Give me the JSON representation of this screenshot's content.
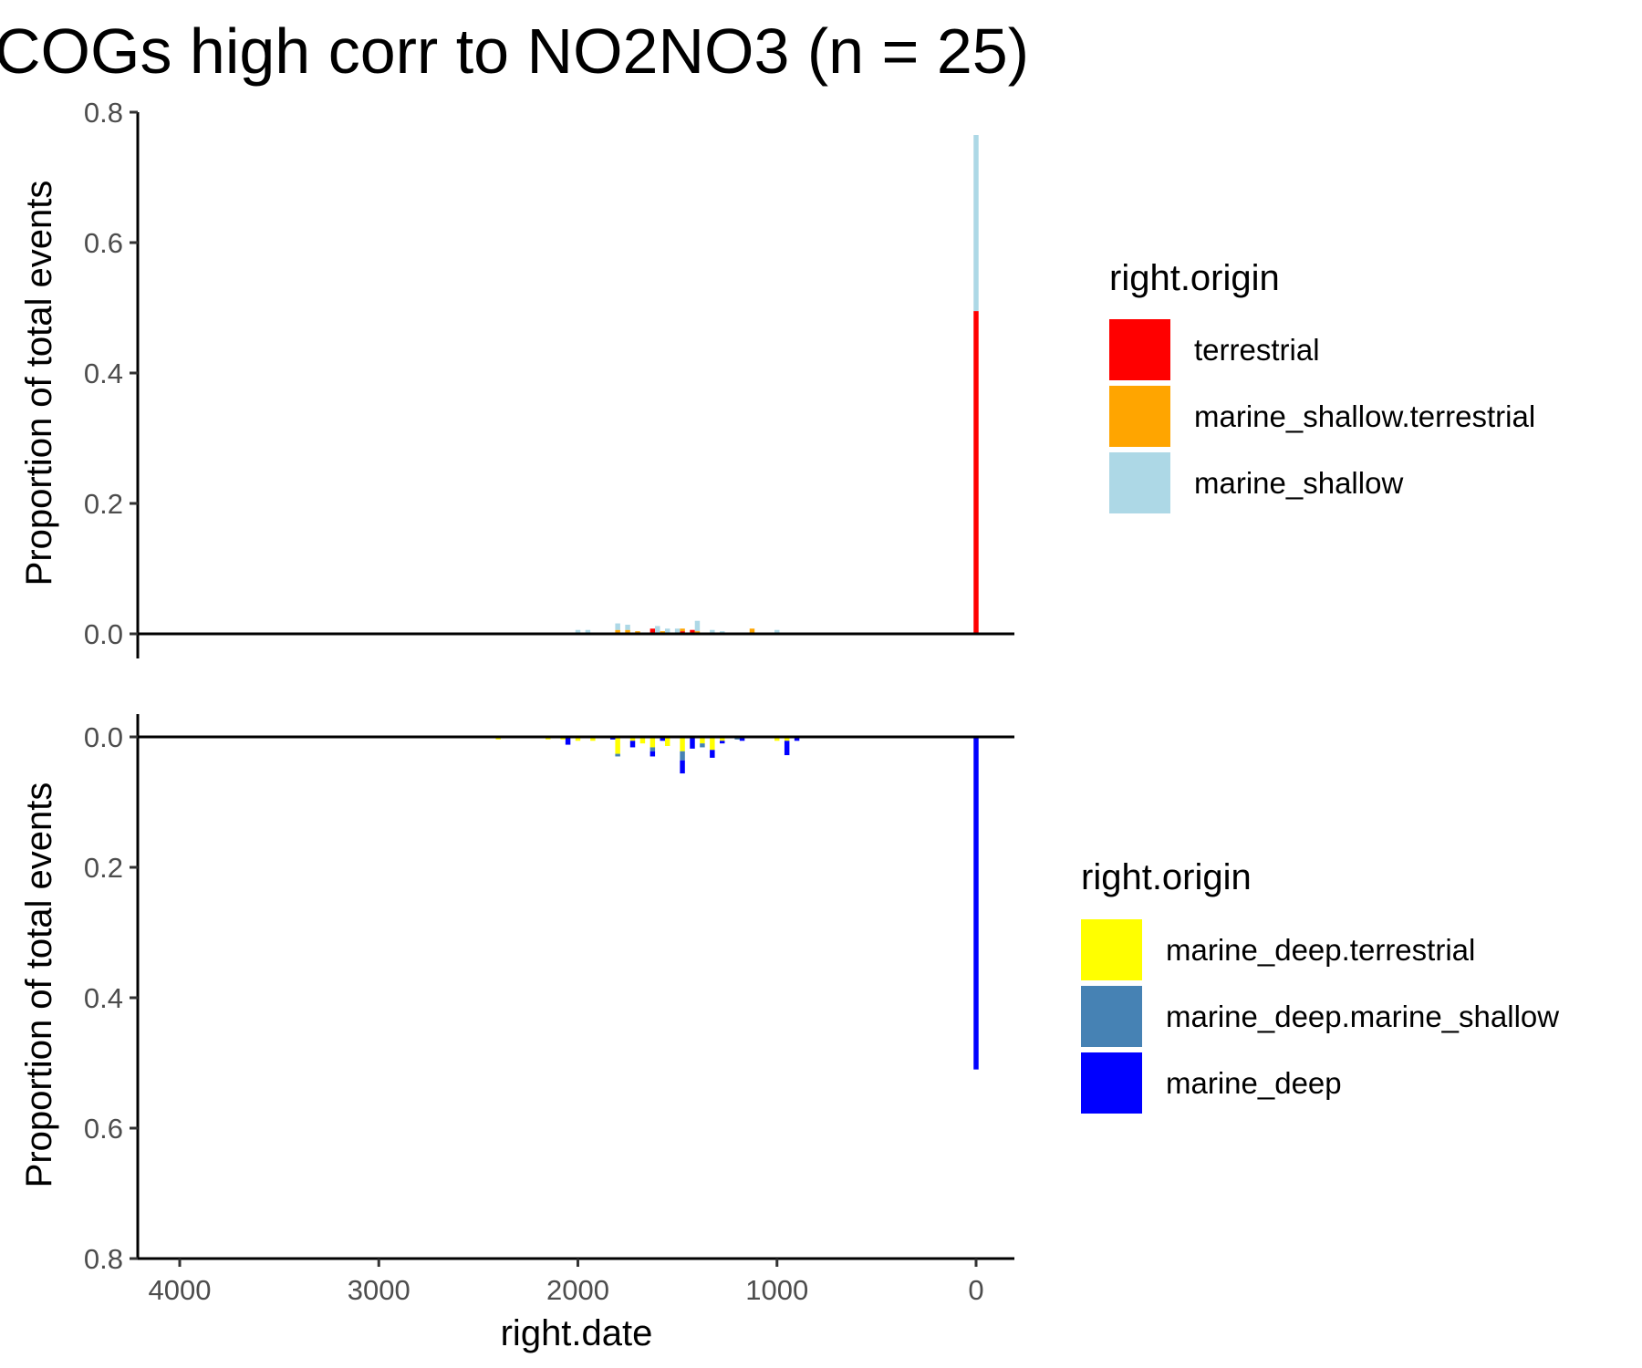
{
  "chart_data": {
    "title": "COGs high corr to NO2NO3 (n = 25)",
    "xlabel": "right.date",
    "x_ticks": [
      "4000",
      "3000",
      "2000",
      "1000",
      "0"
    ],
    "xlim": [
      4200,
      -200
    ],
    "bin_width": 25,
    "panels": [
      {
        "type": "bar",
        "stacked": true,
        "direction": "up",
        "ylabel": "Proportion of total events",
        "ylim": [
          0,
          0.8
        ],
        "y_ticks": [
          "0.0",
          "0.2",
          "0.4",
          "0.6",
          "0.8"
        ],
        "legend": {
          "title": "right.origin",
          "entries": [
            "terrestrial",
            "marine_shallow.terrestrial",
            "marine_shallow"
          ]
        },
        "series": [
          {
            "name": "terrestrial",
            "color": "#ff0000",
            "points": [
              [
                1625,
                0.008
              ],
              [
                1475,
                0.004
              ],
              [
                1425,
                0.006
              ],
              [
                0,
                0.495
              ]
            ]
          },
          {
            "name": "marine_shallow.terrestrial",
            "color": "#ffa500",
            "points": [
              [
                1800,
                0.006
              ],
              [
                1750,
                0.006
              ],
              [
                1700,
                0.004
              ],
              [
                1575,
                0.004
              ],
              [
                1475,
                0.004
              ],
              [
                1400,
                0.004
              ],
              [
                1125,
                0.008
              ]
            ]
          },
          {
            "name": "marine_shallow",
            "color": "#add8e6",
            "points": [
              [
                2000,
                0.006
              ],
              [
                1950,
                0.006
              ],
              [
                1800,
                0.01
              ],
              [
                1750,
                0.008
              ],
              [
                1600,
                0.012
              ],
              [
                1550,
                0.008
              ],
              [
                1500,
                0.008
              ],
              [
                1400,
                0.016
              ],
              [
                1325,
                0.006
              ],
              [
                1275,
                0.004
              ],
              [
                1000,
                0.006
              ],
              [
                0,
                0.27
              ]
            ]
          }
        ]
      },
      {
        "type": "bar",
        "stacked": true,
        "direction": "down",
        "ylabel": "Proportion of total events",
        "ylim": [
          0,
          0.8
        ],
        "y_ticks": [
          "0.0",
          "0.2",
          "0.4",
          "0.6",
          "0.8"
        ],
        "legend": {
          "title": "right.origin",
          "entries": [
            "marine_deep.terrestrial",
            "marine_deep.marine_shallow",
            "marine_deep"
          ]
        },
        "series": [
          {
            "name": "marine_deep.terrestrial",
            "color": "#ffff00",
            "points": [
              [
                2400,
                0.004
              ],
              [
                2150,
                0.004
              ],
              [
                2075,
                0.004
              ],
              [
                2000,
                0.006
              ],
              [
                1925,
                0.006
              ],
              [
                1800,
                0.026
              ],
              [
                1725,
                0.006
              ],
              [
                1675,
                0.01
              ],
              [
                1625,
                0.016
              ],
              [
                1550,
                0.014
              ],
              [
                1475,
                0.022
              ],
              [
                1375,
                0.01
              ],
              [
                1325,
                0.02
              ],
              [
                1275,
                0.006
              ],
              [
                1000,
                0.006
              ],
              [
                950,
                0.006
              ]
            ]
          },
          {
            "name": "marine_deep.marine_shallow",
            "color": "#4682b4",
            "points": [
              [
                2650,
                0.002
              ],
              [
                1800,
                0.004
              ],
              [
                1625,
                0.006
              ],
              [
                1475,
                0.014
              ],
              [
                1375,
                0.006
              ],
              [
                1200,
                0.004
              ]
            ]
          },
          {
            "name": "marine_deep",
            "color": "#0000ff",
            "points": [
              [
                2050,
                0.012
              ],
              [
                1825,
                0.004
              ],
              [
                1725,
                0.01
              ],
              [
                1625,
                0.008
              ],
              [
                1575,
                0.006
              ],
              [
                1475,
                0.02
              ],
              [
                1425,
                0.018
              ],
              [
                1325,
                0.012
              ],
              [
                1275,
                0.004
              ],
              [
                1175,
                0.006
              ],
              [
                950,
                0.022
              ],
              [
                900,
                0.006
              ],
              [
                0,
                0.51
              ]
            ]
          }
        ]
      }
    ]
  }
}
